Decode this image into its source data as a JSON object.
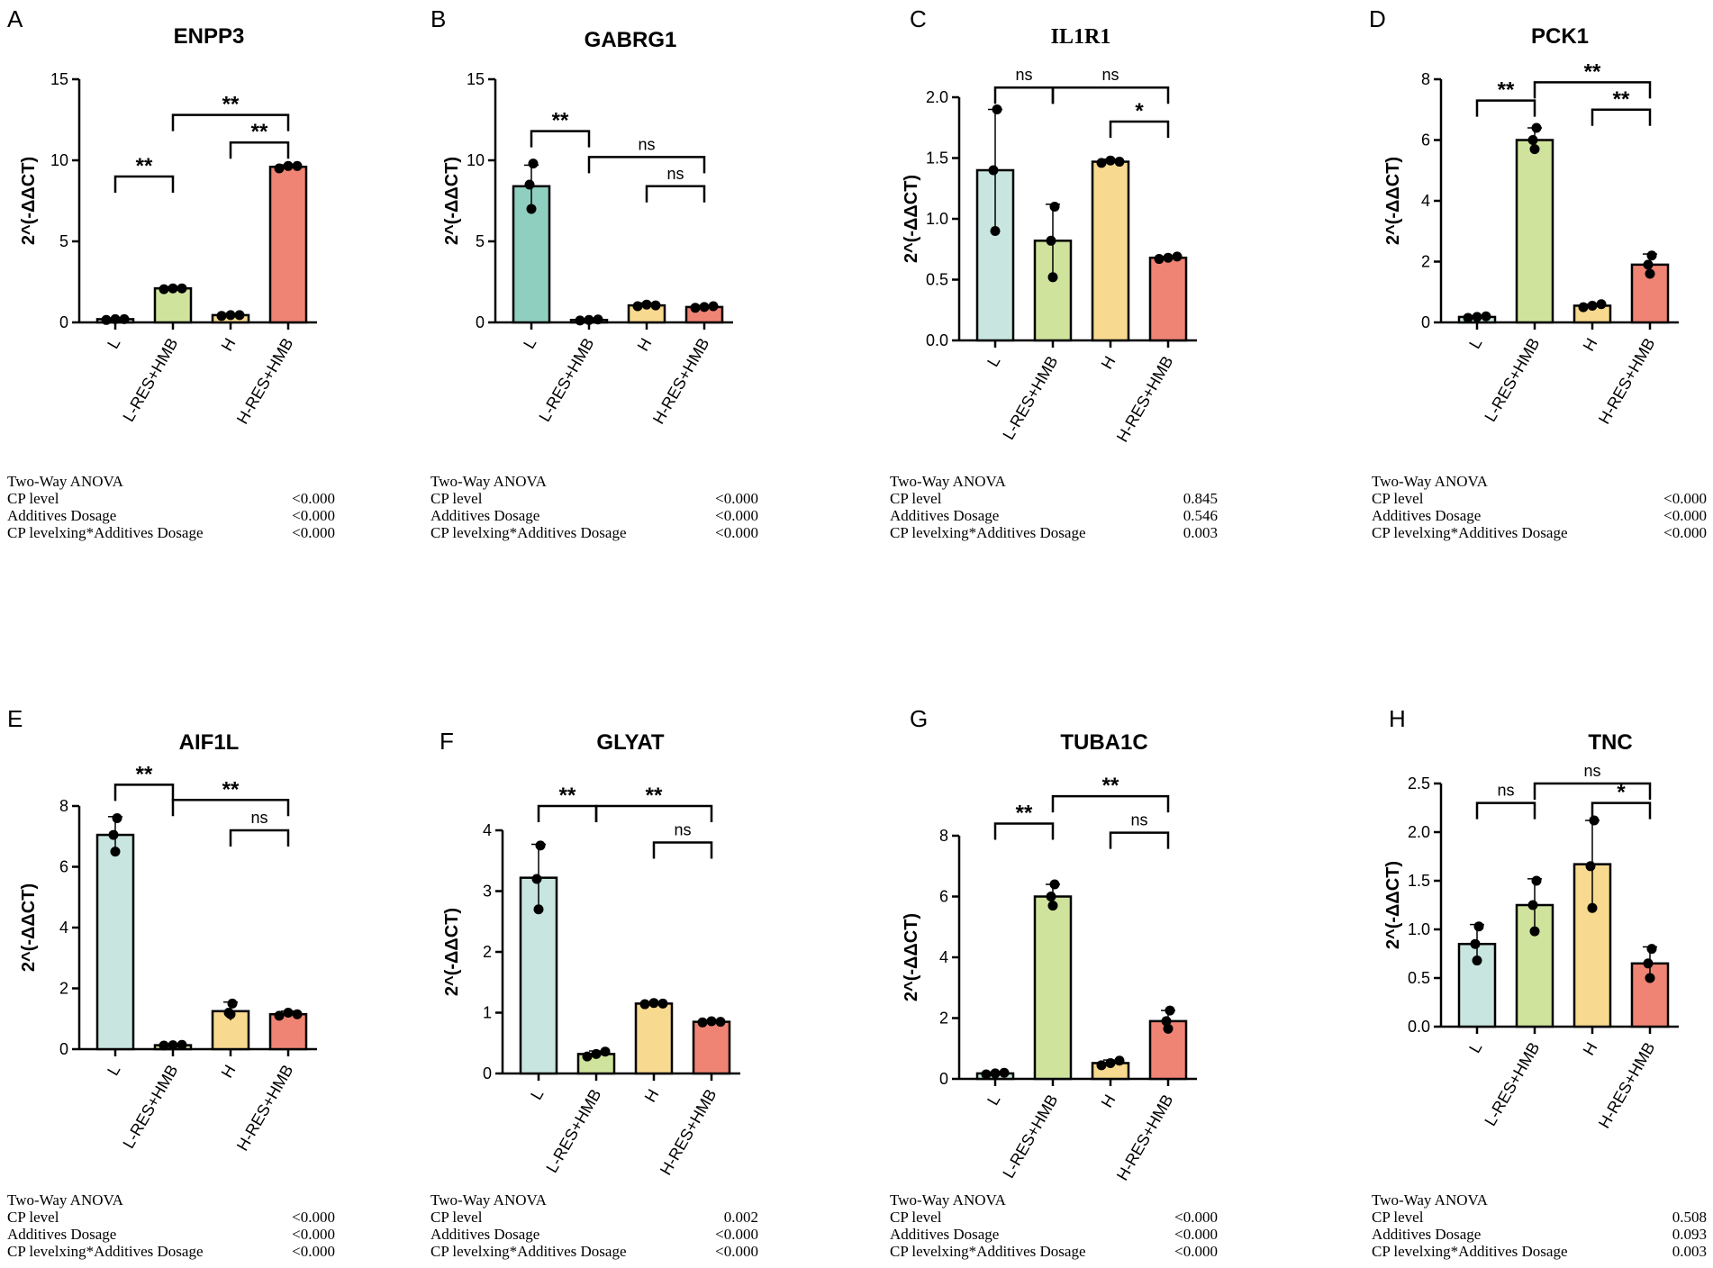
{
  "figure": {
    "anova_title": "Two-Way ANOVA",
    "factor_labels": [
      "CP level",
      "Additives Dosage",
      "CP levelxing*Additives Dosage"
    ],
    "colors": {
      "L": "#c8e6df",
      "L-RES+HMB": "#cfe39c",
      "H": "#f7d98f",
      "H-RES+HMB": "#ef8474",
      "axis": "#000000",
      "GABRG1_L": "#8fcfbf"
    }
  },
  "chart_data": [
    {
      "type": "bar",
      "letter": "A",
      "title": "ENPP3",
      "ylabel": "2^(-ΔΔCT)",
      "ylim": [
        0,
        15
      ],
      "yticks": [
        0,
        5,
        10,
        15
      ],
      "tick_labels": [
        "0",
        "5",
        "10",
        "15"
      ],
      "categories": [
        "L",
        "L-RES+HMB",
        "H",
        "H-RES+HMB"
      ],
      "values": [
        0.2,
        2.1,
        0.45,
        9.6
      ],
      "errors": [
        0.05,
        0.1,
        0.1,
        0.12
      ],
      "points": [
        [
          0.15,
          0.2,
          0.2
        ],
        [
          2.05,
          2.1,
          2.1
        ],
        [
          0.4,
          0.45,
          0.45
        ],
        [
          9.5,
          9.65,
          9.65
        ]
      ],
      "sig": [
        {
          "a": 0,
          "b": 1,
          "label": "**",
          "level": 9
        },
        {
          "a": 2,
          "b": 3,
          "label": "**",
          "level": 11.1
        },
        {
          "a": 1,
          "b": 3,
          "label": "**",
          "level": 12.8
        }
      ],
      "anova": [
        "<0.000",
        "<0.000",
        "<0.000"
      ]
    },
    {
      "type": "bar",
      "letter": "B",
      "title": "GABRG1",
      "ylabel": "2^(-ΔΔCT)",
      "ylim": [
        0,
        15
      ],
      "yticks": [
        0,
        5,
        10,
        15
      ],
      "tick_labels": [
        "0",
        "5",
        "10",
        "15"
      ],
      "categories": [
        "L",
        "L-RES+HMB",
        "H",
        "H-RES+HMB"
      ],
      "values": [
        8.4,
        0.15,
        1.05,
        0.95
      ],
      "errors": [
        1.3,
        0.05,
        0.15,
        0.1
      ],
      "points": [
        [
          9.8,
          8.5,
          7.0
        ],
        [
          0.12,
          0.15,
          0.18
        ],
        [
          1.0,
          1.1,
          1.05
        ],
        [
          0.9,
          0.95,
          1.0
        ]
      ],
      "sig": [
        {
          "a": 0,
          "b": 1,
          "label": "**",
          "level": 11.8
        },
        {
          "a": 2,
          "b": 3,
          "label": "ns",
          "level": 8.4
        },
        {
          "a": 1,
          "b": 3,
          "label": "ns",
          "level": 10.2
        }
      ],
      "anova": [
        "<0.000",
        "<0.000",
        "<0.000"
      ]
    },
    {
      "type": "bar",
      "letter": "C",
      "title": "IL1R1",
      "ylabel": "2^(-ΔΔCT)",
      "ylim": [
        0,
        2.0
      ],
      "yticks": [
        0,
        0.5,
        1.0,
        1.5,
        2.0
      ],
      "tick_labels": [
        "0.0",
        "0.5",
        "1.0",
        "1.5",
        "2.0"
      ],
      "categories": [
        "L",
        "L-RES+HMB",
        "H",
        "H-RES+HMB"
      ],
      "values": [
        1.4,
        0.82,
        1.47,
        0.68
      ],
      "errors": [
        0.5,
        0.3,
        0.02,
        0.01
      ],
      "points": [
        [
          1.9,
          1.4,
          0.9
        ],
        [
          1.1,
          0.82,
          0.52
        ],
        [
          1.46,
          1.48,
          1.47
        ],
        [
          0.67,
          0.68,
          0.69
        ]
      ],
      "sig": [
        {
          "a": 0,
          "b": 1,
          "label": "ns",
          "level": 2.08
        },
        {
          "a": 1,
          "b": 3,
          "label": "ns",
          "level": 2.08
        },
        {
          "a": 2,
          "b": 3,
          "label": "*",
          "level": 1.8
        }
      ],
      "anova": [
        "0.845",
        "0.546",
        "0.003"
      ]
    },
    {
      "type": "bar",
      "letter": "D",
      "title": "PCK1",
      "ylabel": "2^(-ΔΔCT)",
      "ylim": [
        0,
        8
      ],
      "yticks": [
        0,
        2,
        4,
        6,
        8
      ],
      "tick_labels": [
        "0",
        "2",
        "4",
        "6",
        "8"
      ],
      "categories": [
        "L",
        "L-RES+HMB",
        "H",
        "H-RES+HMB"
      ],
      "values": [
        0.18,
        6.0,
        0.55,
        1.9
      ],
      "errors": [
        0.03,
        0.4,
        0.05,
        0.35
      ],
      "points": [
        [
          0.15,
          0.18,
          0.2
        ],
        [
          6.4,
          6.0,
          5.7
        ],
        [
          0.5,
          0.55,
          0.6
        ],
        [
          2.2,
          1.9,
          1.6
        ]
      ],
      "sig": [
        {
          "a": 0,
          "b": 1,
          "label": "**",
          "level": 7.3
        },
        {
          "a": 2,
          "b": 3,
          "label": "**",
          "level": 7.0
        },
        {
          "a": 1,
          "b": 3,
          "label": "**",
          "level": 7.9
        }
      ],
      "anova": [
        "<0.000",
        "<0.000",
        "<0.000"
      ]
    },
    {
      "type": "bar",
      "letter": "E",
      "title": "AIF1L",
      "ylabel": "2^(-ΔΔCT)",
      "ylim": [
        0,
        8
      ],
      "yticks": [
        0,
        2,
        4,
        6,
        8
      ],
      "tick_labels": [
        "0",
        "2",
        "4",
        "6",
        "8"
      ],
      "categories": [
        "L",
        "L-RES+HMB",
        "H",
        "H-RES+HMB"
      ],
      "values": [
        7.05,
        0.13,
        1.25,
        1.15
      ],
      "errors": [
        0.6,
        0.02,
        0.3,
        0.1
      ],
      "points": [
        [
          7.6,
          7.05,
          6.5
        ],
        [
          0.12,
          0.13,
          0.14
        ],
        [
          1.5,
          1.2,
          1.15
        ],
        [
          1.1,
          1.2,
          1.15
        ]
      ],
      "sig": [
        {
          "a": 0,
          "b": 1,
          "label": "**",
          "level": 8.7
        },
        {
          "a": 2,
          "b": 3,
          "label": "ns",
          "level": 7.2
        },
        {
          "a": 1,
          "b": 3,
          "label": "**",
          "level": 8.2
        }
      ],
      "anova": [
        "<0.000",
        "<0.000",
        "<0.000"
      ]
    },
    {
      "type": "bar",
      "letter": "F",
      "title": "GLYAT",
      "ylabel": "2^(-ΔΔCT)",
      "ylim": [
        0,
        4
      ],
      "yticks": [
        0,
        1,
        2,
        3,
        4
      ],
      "tick_labels": [
        "0",
        "1",
        "2",
        "3",
        "4"
      ],
      "categories": [
        "L",
        "L-RES+HMB",
        "H",
        "H-RES+HMB"
      ],
      "values": [
        3.22,
        0.32,
        1.15,
        0.85
      ],
      "errors": [
        0.55,
        0.05,
        0.03,
        0.03
      ],
      "points": [
        [
          3.75,
          3.2,
          2.7
        ],
        [
          0.28,
          0.32,
          0.36
        ],
        [
          1.14,
          1.16,
          1.15
        ],
        [
          0.84,
          0.86,
          0.85
        ]
      ],
      "sig": [
        {
          "a": 0,
          "b": 1,
          "label": "**",
          "level": 4.4
        },
        {
          "a": 2,
          "b": 3,
          "label": "ns",
          "level": 3.8
        },
        {
          "a": 1,
          "b": 3,
          "label": "**",
          "level": 4.4
        }
      ],
      "anova": [
        "0.002",
        "<0.000",
        "<0.000"
      ]
    },
    {
      "type": "bar",
      "letter": "G",
      "title": "TUBA1C",
      "ylabel": "2^(-ΔΔCT)",
      "ylim": [
        0,
        8
      ],
      "yticks": [
        0,
        2,
        4,
        6,
        8
      ],
      "tick_labels": [
        "0",
        "2",
        "4",
        "6",
        "8"
      ],
      "categories": [
        "L",
        "L-RES+HMB",
        "H",
        "H-RES+HMB"
      ],
      "values": [
        0.18,
        6.0,
        0.52,
        1.9
      ],
      "errors": [
        0.03,
        0.4,
        0.1,
        0.35
      ],
      "points": [
        [
          0.15,
          0.18,
          0.2
        ],
        [
          6.4,
          6.0,
          5.7
        ],
        [
          0.45,
          0.52,
          0.6
        ],
        [
          2.25,
          1.9,
          1.65
        ]
      ],
      "sig": [
        {
          "a": 0,
          "b": 1,
          "label": "**",
          "level": 8.4
        },
        {
          "a": 2,
          "b": 3,
          "label": "ns",
          "level": 8.1
        },
        {
          "a": 1,
          "b": 3,
          "label": "**",
          "level": 9.3
        }
      ],
      "anova": [
        "<0.000",
        "<0.000",
        "<0.000"
      ]
    },
    {
      "type": "bar",
      "letter": "H",
      "title": "TNC",
      "ylabel": "2^(-ΔΔCT)",
      "ylim": [
        0,
        2.5
      ],
      "yticks": [
        0,
        0.5,
        1.0,
        1.5,
        2.0,
        2.5
      ],
      "tick_labels": [
        "0.0",
        "0.5",
        "1.0",
        "1.5",
        "2.0",
        "2.5"
      ],
      "categories": [
        "L",
        "L-RES+HMB",
        "H",
        "H-RES+HMB"
      ],
      "values": [
        0.85,
        1.25,
        1.67,
        0.65
      ],
      "errors": [
        0.2,
        0.27,
        0.45,
        0.17
      ],
      "points": [
        [
          1.03,
          0.85,
          0.68
        ],
        [
          1.5,
          1.25,
          0.98
        ],
        [
          2.12,
          1.65,
          1.22
        ],
        [
          0.8,
          0.65,
          0.5
        ]
      ],
      "sig": [
        {
          "a": 0,
          "b": 1,
          "label": "ns",
          "level": 2.3
        },
        {
          "a": 2,
          "b": 3,
          "label": "*",
          "level": 2.3
        },
        {
          "a": 1,
          "b": 3,
          "label": "ns",
          "level": 2.5
        }
      ],
      "anova": [
        "0.508",
        "0.093",
        "0.003"
      ]
    }
  ]
}
